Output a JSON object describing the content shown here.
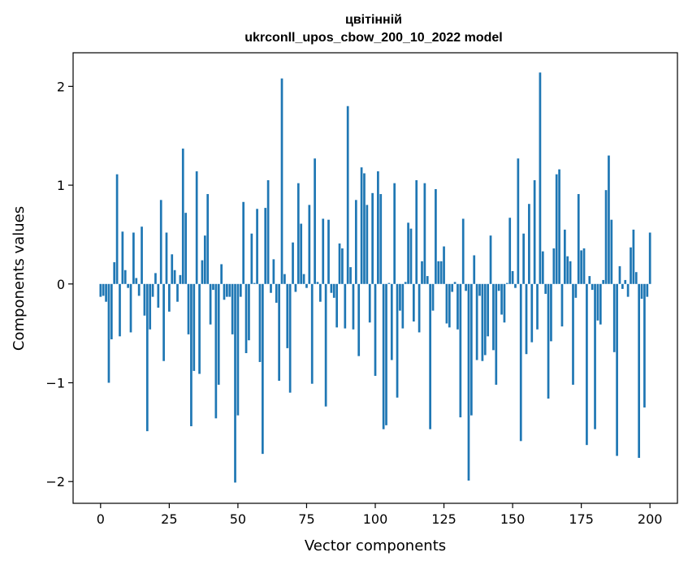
{
  "chart_data": {
    "type": "bar",
    "title_line1": "цвітінній",
    "title_line2": "ukrconll_upos_cbow_200_10_2022 model",
    "xlabel": "Vector components",
    "ylabel": "Components values",
    "xlim": [
      -10,
      210
    ],
    "ylim": [
      -2.22,
      2.34
    ],
    "xticks": [
      0,
      25,
      50,
      75,
      100,
      125,
      150,
      175,
      200
    ],
    "yticks": [
      -2,
      -1,
      0,
      1,
      2
    ],
    "ytick_labels": [
      "−2",
      "−1",
      "0",
      "1",
      "2"
    ],
    "grid": false,
    "bar_color": "#1f77b4",
    "values": [
      -0.13,
      -0.12,
      -0.18,
      -1.0,
      -0.56,
      0.22,
      1.11,
      -0.53,
      0.53,
      0.14,
      -0.04,
      -0.49,
      0.52,
      0.06,
      -0.12,
      0.58,
      -0.32,
      -1.49,
      -0.46,
      -0.13,
      0.11,
      -0.24,
      0.85,
      -0.78,
      0.52,
      -0.28,
      0.3,
      0.14,
      -0.18,
      0.09,
      1.37,
      0.72,
      -0.51,
      -1.44,
      -0.88,
      1.14,
      -0.91,
      0.24,
      0.49,
      0.91,
      -0.41,
      -0.06,
      -1.36,
      -1.02,
      0.2,
      -0.16,
      -0.13,
      -0.13,
      -0.51,
      -2.01,
      -1.33,
      -0.13,
      0.83,
      -0.7,
      -0.57,
      0.51,
      0.01,
      0.76,
      -0.79,
      -1.72,
      0.77,
      1.05,
      -0.09,
      0.25,
      -0.19,
      -0.98,
      2.08,
      0.1,
      -0.65,
      -1.1,
      0.42,
      -0.08,
      1.02,
      0.61,
      0.1,
      -0.04,
      0.8,
      -1.01,
      1.27,
      0.02,
      -0.18,
      0.66,
      -1.24,
      0.65,
      -0.09,
      -0.14,
      -0.44,
      0.41,
      0.36,
      -0.45,
      1.8,
      0.17,
      -0.46,
      0.85,
      -0.73,
      1.18,
      1.12,
      0.8,
      -0.39,
      0.92,
      -0.93,
      1.14,
      0.91,
      -1.47,
      -1.43,
      0.01,
      -0.77,
      1.02,
      -1.15,
      -0.27,
      -0.45,
      0.02,
      0.62,
      0.56,
      -0.38,
      1.05,
      -0.49,
      0.23,
      1.02,
      0.08,
      -1.47,
      -0.27,
      0.96,
      0.23,
      0.23,
      0.38,
      -0.4,
      -0.44,
      -0.08,
      0.02,
      -0.46,
      -1.35,
      0.66,
      -0.07,
      -1.99,
      -1.33,
      0.29,
      -0.77,
      -0.12,
      -0.78,
      -0.72,
      -0.53,
      0.49,
      -0.67,
      -1.02,
      -0.07,
      -0.31,
      -0.39,
      0.01,
      0.67,
      0.13,
      -0.04,
      1.27,
      -1.59,
      0.51,
      -0.71,
      0.81,
      -0.59,
      1.05,
      -0.46,
      2.14,
      0.33,
      -0.1,
      -1.16,
      -0.58,
      0.36,
      1.11,
      1.16,
      -0.43,
      0.55,
      0.28,
      0.23,
      -1.02,
      -0.14,
      0.91,
      0.34,
      0.36,
      -1.63,
      0.08,
      -0.06,
      -1.47,
      -0.37,
      -0.41,
      0.04,
      0.95,
      1.3,
      0.65,
      -0.69,
      -1.74,
      0.18,
      -0.05,
      0.04,
      -0.13,
      0.37,
      0.55,
      0.12,
      -1.76,
      -0.15,
      -1.25,
      -0.13,
      0.52
    ]
  }
}
